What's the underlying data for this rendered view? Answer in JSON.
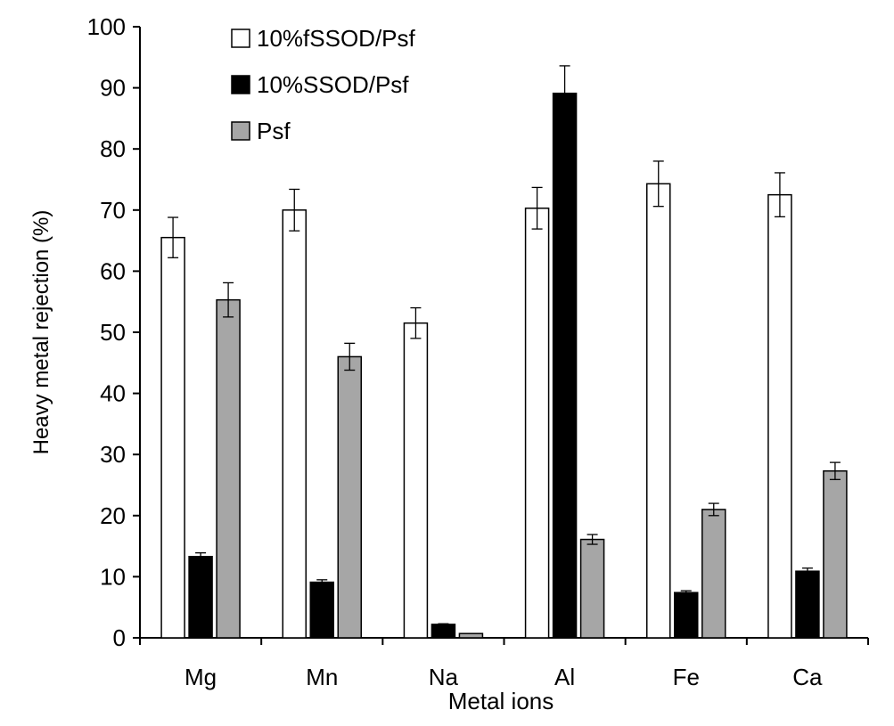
{
  "chart_data": {
    "type": "bar",
    "title": "",
    "xlabel": "Metal ions",
    "ylabel": "Heavy metal rejection (%)",
    "ylim": [
      0,
      100
    ],
    "yticks": [
      0,
      10,
      20,
      30,
      40,
      50,
      60,
      70,
      80,
      90,
      100
    ],
    "grid": false,
    "legend_position": "top-left",
    "categories": [
      "Mg",
      "Mn",
      "Na",
      "Al",
      "Fe",
      "Ca"
    ],
    "series": [
      {
        "name": "10%fSSOD/Psf",
        "color": "#ffffff",
        "values": [
          65.5,
          70.0,
          51.5,
          70.3,
          74.3,
          72.5
        ],
        "errors": [
          3.3,
          3.4,
          2.5,
          3.4,
          3.7,
          3.6
        ]
      },
      {
        "name": "10%SSOD/Psf",
        "color": "#000000",
        "values": [
          13.3,
          9.1,
          2.2,
          89.1,
          7.4,
          10.9
        ],
        "errors": [
          0.6,
          0.4,
          0.1,
          4.5,
          0.3,
          0.5
        ]
      },
      {
        "name": "Psf",
        "color": "#a6a6a6",
        "values": [
          55.3,
          46.0,
          0.7,
          16.1,
          21.0,
          27.3
        ],
        "errors": [
          2.8,
          2.2,
          0.0,
          0.8,
          1.0,
          1.4
        ]
      }
    ]
  }
}
